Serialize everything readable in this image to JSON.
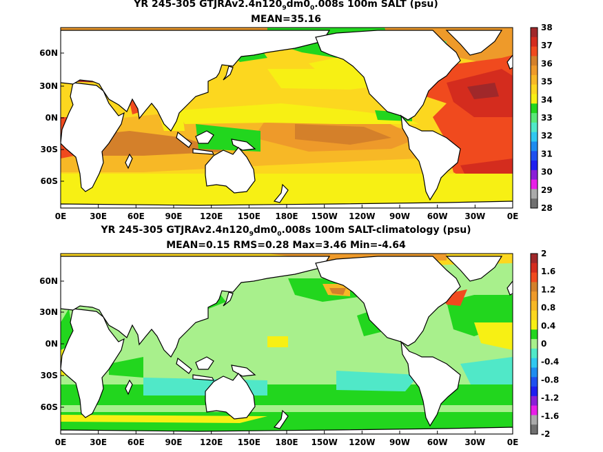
{
  "panels": [
    {
      "title_prefix": "YR 245-305 GTJRAv2.4n120",
      "title_sub1": "9",
      "title_mid": "dm0",
      "title_sub2": "0",
      "title_suffix": ".008s 100m SALT (psu)",
      "stats": "MEAN=35.16",
      "lat_labels": [
        "60N",
        "30N",
        "0N",
        "30S",
        "60S"
      ],
      "lon_labels": [
        "0E",
        "30E",
        "60E",
        "90E",
        "120E",
        "150E",
        "180E",
        "150W",
        "120W",
        "90W",
        "60W",
        "30W",
        "0E"
      ],
      "colorbar_labels": [
        "38",
        "37",
        "36",
        "35",
        "34",
        "33",
        "32",
        "31",
        "30",
        "29",
        "28"
      ],
      "colorbar_colors": [
        "#a0282a",
        "#d42c1e",
        "#f04a1e",
        "#d4802a",
        "#ee9a2a",
        "#f7b826",
        "#fcd71f",
        "#f7f014",
        "#22d61e",
        "#58e878",
        "#50e8c8",
        "#30c8f0",
        "#1e8cf0",
        "#1e50f0",
        "#1e1ef0",
        "#8a1ed8",
        "#e81ee8",
        "#aaaaaa",
        "#707070"
      ]
    },
    {
      "title_prefix": "YR 245-305 GTJRAv2.4n120",
      "title_sub1": "9",
      "title_mid": "dm0",
      "title_sub2": "0",
      "title_suffix": ".008s 100m SALT-climatology (psu)",
      "stats": "MEAN=0.15   RMS=0.28   Max=3.46   Min=-4.64",
      "lat_labels": [
        "60N",
        "30N",
        "0N",
        "30S",
        "60S"
      ],
      "lon_labels": [
        "0E",
        "30E",
        "60E",
        "90E",
        "120E",
        "150E",
        "180E",
        "150W",
        "120W",
        "90W",
        "60W",
        "30W",
        "0E"
      ],
      "colorbar_labels": [
        "2",
        "1.6",
        "1.2",
        "0.8",
        "0.4",
        "0",
        "-0.4",
        "-0.8",
        "-1.2",
        "-1.6",
        "-2"
      ],
      "colorbar_colors": [
        "#a0282a",
        "#d42c1e",
        "#f04a1e",
        "#d4802a",
        "#ee9a2a",
        "#f7b826",
        "#fcd71f",
        "#f7f014",
        "#22d61e",
        "#a8f08c",
        "#50e8c8",
        "#30c8f0",
        "#1e8cf0",
        "#1e50f0",
        "#1e1ef0",
        "#8a1ed8",
        "#e81ee8",
        "#aaaaaa",
        "#707070"
      ]
    }
  ]
}
